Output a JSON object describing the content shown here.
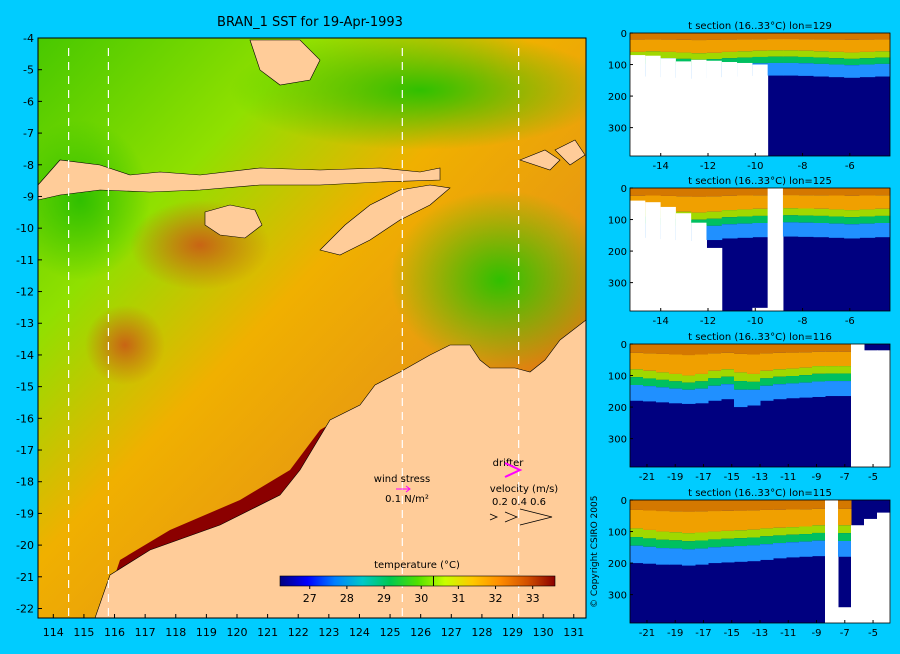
{
  "chart_data": [
    {
      "type": "heatmap",
      "title": "BRAN_1 SST for 19-Apr-1993",
      "x_ticks": [
        114,
        115,
        116,
        117,
        118,
        119,
        120,
        121,
        122,
        123,
        124,
        125,
        126,
        127,
        128,
        129,
        130,
        131
      ],
      "y_ticks": [
        -4,
        -5,
        -6,
        -7,
        -8,
        -9,
        -10,
        -11,
        -12,
        -13,
        -14,
        -15,
        -16,
        -17,
        -18,
        -19,
        -20,
        -21,
        -22
      ],
      "xlim": [
        113.5,
        131.4
      ],
      "ylim": [
        -22.3,
        -4
      ],
      "section_lines_lon": [
        114.5,
        115.8,
        125.4,
        129.2
      ],
      "land_color": "#ffcc99",
      "colorbar": {
        "label": "temperature (°C)",
        "ticks": [
          27,
          28,
          29,
          30,
          31,
          32,
          33
        ],
        "range": [
          26.2,
          33.6
        ],
        "marker": 30.33,
        "colors": [
          "#00007f",
          "#0000ff",
          "#0080ff",
          "#00c8c8",
          "#00c850",
          "#50e000",
          "#c8ff00",
          "#ffc800",
          "#ff8c00",
          "#d25000",
          "#8b0000"
        ]
      },
      "legend": {
        "wind_stress_label": "wind stress",
        "wind_stress_value": "0.1 N/m²",
        "drifter_label": "drifter",
        "velocity_label": "velocity (m/s)",
        "velocity_values": "0.2 0.4 0.6"
      }
    },
    {
      "type": "heatmap",
      "title": "t section (16..33°C) lon=129",
      "x_ticks": [
        -14,
        -12,
        -10,
        -8,
        -6
      ],
      "y_ticks": [
        0,
        100,
        200,
        300
      ],
      "xlim": [
        -15.3,
        -4.3
      ],
      "ylim": [
        0,
        390
      ],
      "mixed_layer_depth": [
        60,
        58,
        60,
        62,
        64,
        63,
        60,
        58,
        56,
        55,
        55,
        56,
        58,
        60,
        62,
        60,
        58
      ],
      "thermocline_depth": [
        140,
        138,
        140,
        142,
        145,
        143,
        140,
        138,
        136,
        135,
        135,
        136,
        138,
        140,
        142,
        140,
        138
      ],
      "bottom_depth": [
        70,
        72,
        80,
        90,
        85,
        88,
        92,
        95,
        100,
        390,
        390,
        390,
        390,
        390,
        390,
        390,
        390
      ]
    },
    {
      "type": "heatmap",
      "title": "t section (16..33°C) lon=125",
      "x_ticks": [
        -14,
        -12,
        -10,
        -8,
        -6
      ],
      "y_ticks": [
        0,
        100,
        200,
        300
      ],
      "xlim": [
        -15.3,
        -4.3
      ],
      "ylim": [
        0,
        390
      ],
      "mixed_layer_depth": [
        70,
        68,
        72,
        75,
        78,
        75,
        70,
        68,
        66,
        65,
        64,
        65,
        66,
        68,
        70,
        68,
        66
      ],
      "thermocline_depth": [
        160,
        158,
        162,
        165,
        168,
        165,
        160,
        158,
        156,
        155,
        154,
        155,
        156,
        158,
        160,
        158,
        156
      ],
      "bottom_depth": [
        40,
        45,
        60,
        80,
        110,
        190,
        390,
        390,
        380,
        0,
        390,
        390,
        390,
        390,
        390,
        390,
        390
      ]
    },
    {
      "type": "heatmap",
      "title": "t section (16..33°C) lon=116",
      "x_ticks": [
        -21,
        -19,
        -17,
        -15,
        -13,
        -11,
        -9,
        -7,
        -5
      ],
      "y_ticks": [
        0,
        100,
        200,
        300
      ],
      "xlim": [
        -22.2,
        -3.8
      ],
      "ylim": [
        0,
        390
      ],
      "mixed_layer_depth": [
        80,
        85,
        90,
        95,
        100,
        95,
        85,
        80,
        90,
        95,
        85,
        80,
        78,
        75,
        70,
        70,
        70,
        0,
        0,
        0
      ],
      "thermocline_depth": [
        180,
        182,
        185,
        188,
        190,
        188,
        180,
        175,
        200,
        195,
        180,
        175,
        172,
        170,
        168,
        165,
        165,
        0,
        0,
        0
      ],
      "bottom_depth": [
        390,
        390,
        390,
        390,
        390,
        390,
        390,
        390,
        390,
        390,
        390,
        390,
        390,
        390,
        390,
        390,
        390,
        0,
        20,
        20
      ]
    },
    {
      "type": "heatmap",
      "title": "t section (16..33°C) lon=115",
      "x_ticks": [
        -21,
        -19,
        -17,
        -15,
        -13,
        -11,
        -9,
        -7,
        -5
      ],
      "y_ticks": [
        0,
        100,
        200,
        300
      ],
      "xlim": [
        -22.2,
        -3.8
      ],
      "ylim": [
        0,
        390
      ],
      "mixed_layer_depth": [
        90,
        95,
        100,
        102,
        105,
        103,
        100,
        98,
        96,
        94,
        90,
        88,
        86,
        84,
        80,
        0,
        80,
        0,
        0,
        0
      ],
      "thermocline_depth": [
        200,
        202,
        205,
        205,
        208,
        205,
        200,
        198,
        196,
        194,
        190,
        185,
        182,
        180,
        178,
        0,
        180,
        0,
        0,
        0
      ],
      "bottom_depth": [
        390,
        390,
        390,
        390,
        390,
        390,
        390,
        390,
        390,
        390,
        390,
        390,
        390,
        390,
        390,
        0,
        340,
        80,
        60,
        40
      ]
    }
  ],
  "copyright": "© Copyright CSIRO 2005"
}
